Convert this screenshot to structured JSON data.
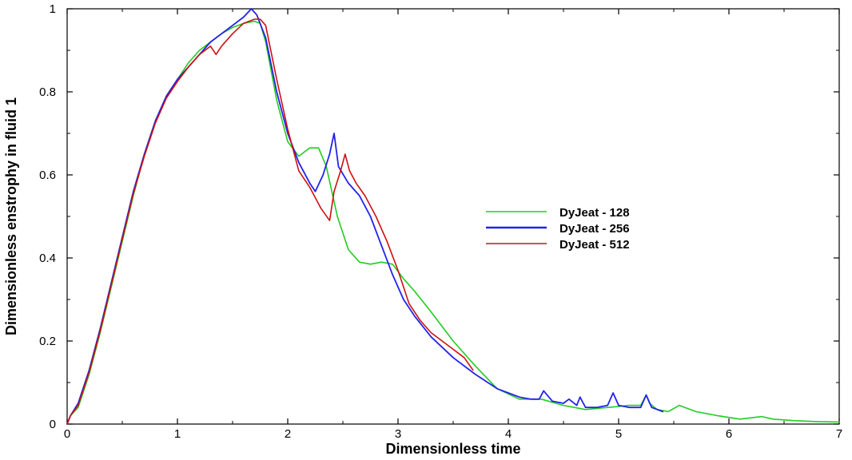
{
  "chart_data": {
    "type": "line",
    "title": "",
    "xlabel": "Dimensionless time",
    "ylabel": "Dimensionless enstrophy in fluid 1",
    "xlim": [
      0,
      7
    ],
    "ylim": [
      0,
      1
    ],
    "grid": false,
    "legend_position": "center-right",
    "x_ticks": [
      0,
      1,
      2,
      3,
      4,
      5,
      6,
      7
    ],
    "x_tick_labels": [
      "0",
      "1",
      "2",
      "3",
      "4",
      "5",
      "6",
      "7"
    ],
    "y_ticks": [
      0,
      0.2,
      0.4,
      0.6,
      0.8,
      1
    ],
    "y_tick_labels": [
      "0",
      "0.2",
      "0.4",
      "0.6",
      "0.8",
      "1"
    ],
    "series": [
      {
        "name": "DyJeat - 128",
        "color": "#22cc22",
        "x": [
          0,
          0.03,
          0.1,
          0.2,
          0.3,
          0.4,
          0.5,
          0.6,
          0.7,
          0.8,
          0.9,
          1.0,
          1.1,
          1.2,
          1.3,
          1.4,
          1.5,
          1.6,
          1.7,
          1.75,
          1.8,
          1.9,
          2.0,
          2.1,
          2.15,
          2.2,
          2.28,
          2.35,
          2.45,
          2.55,
          2.65,
          2.75,
          2.85,
          2.95,
          3.05,
          3.15,
          3.3,
          3.5,
          3.7,
          3.9,
          4.1,
          4.3,
          4.5,
          4.7,
          4.9,
          5.1,
          5.2,
          5.25,
          5.28,
          5.35,
          5.45,
          5.55,
          5.7,
          5.9,
          6.1,
          6.3,
          6.4,
          6.6,
          6.8,
          7.0
        ],
        "y": [
          0,
          0.02,
          0.04,
          0.12,
          0.22,
          0.33,
          0.44,
          0.55,
          0.65,
          0.73,
          0.79,
          0.83,
          0.87,
          0.9,
          0.92,
          0.94,
          0.955,
          0.965,
          0.97,
          0.965,
          0.92,
          0.78,
          0.68,
          0.645,
          0.655,
          0.665,
          0.665,
          0.62,
          0.5,
          0.42,
          0.39,
          0.385,
          0.39,
          0.385,
          0.35,
          0.32,
          0.27,
          0.2,
          0.14,
          0.085,
          0.06,
          0.06,
          0.045,
          0.035,
          0.04,
          0.045,
          0.045,
          0.07,
          0.05,
          0.035,
          0.03,
          0.045,
          0.03,
          0.02,
          0.012,
          0.018,
          0.012,
          0.008,
          0.006,
          0.005
        ]
      },
      {
        "name": "DyJeat - 256",
        "color": "#2222ee",
        "x": [
          0,
          0.03,
          0.1,
          0.2,
          0.3,
          0.4,
          0.5,
          0.6,
          0.7,
          0.8,
          0.9,
          1.0,
          1.1,
          1.2,
          1.3,
          1.4,
          1.5,
          1.6,
          1.67,
          1.72,
          1.8,
          1.9,
          2.0,
          2.1,
          2.2,
          2.25,
          2.32,
          2.38,
          2.42,
          2.46,
          2.55,
          2.65,
          2.75,
          2.85,
          2.95,
          3.05,
          3.15,
          3.3,
          3.5,
          3.7,
          3.9,
          4.0,
          4.1,
          4.2,
          4.28,
          4.32,
          4.4,
          4.5,
          4.55,
          4.62,
          4.65,
          4.7,
          4.8,
          4.9,
          4.95,
          5.0,
          5.1,
          5.2,
          5.25,
          5.3,
          5.4
        ],
        "y": [
          0,
          0.02,
          0.05,
          0.13,
          0.23,
          0.34,
          0.45,
          0.56,
          0.65,
          0.73,
          0.79,
          0.83,
          0.86,
          0.89,
          0.92,
          0.94,
          0.96,
          0.98,
          1.0,
          0.985,
          0.93,
          0.8,
          0.7,
          0.63,
          0.58,
          0.56,
          0.6,
          0.65,
          0.7,
          0.62,
          0.58,
          0.55,
          0.5,
          0.43,
          0.36,
          0.3,
          0.26,
          0.21,
          0.16,
          0.12,
          0.085,
          0.075,
          0.065,
          0.06,
          0.06,
          0.08,
          0.055,
          0.05,
          0.06,
          0.045,
          0.065,
          0.04,
          0.04,
          0.045,
          0.075,
          0.045,
          0.04,
          0.04,
          0.07,
          0.04,
          0.03
        ]
      },
      {
        "name": "DyJeat - 512",
        "color": "#cc1111",
        "x": [
          0,
          0.03,
          0.1,
          0.2,
          0.3,
          0.4,
          0.5,
          0.6,
          0.7,
          0.8,
          0.9,
          1.0,
          1.1,
          1.2,
          1.3,
          1.35,
          1.4,
          1.5,
          1.6,
          1.7,
          1.75,
          1.8,
          1.9,
          2.0,
          2.1,
          2.2,
          2.3,
          2.38,
          2.42,
          2.48,
          2.52,
          2.56,
          2.62,
          2.7,
          2.8,
          2.9,
          3.0,
          3.1,
          3.2,
          3.3,
          3.4,
          3.5,
          3.6,
          3.68
        ],
        "y": [
          0,
          0.02,
          0.045,
          0.125,
          0.225,
          0.335,
          0.445,
          0.555,
          0.645,
          0.725,
          0.785,
          0.825,
          0.86,
          0.89,
          0.91,
          0.89,
          0.91,
          0.94,
          0.965,
          0.975,
          0.975,
          0.96,
          0.83,
          0.71,
          0.61,
          0.57,
          0.52,
          0.49,
          0.56,
          0.61,
          0.65,
          0.61,
          0.58,
          0.55,
          0.5,
          0.44,
          0.37,
          0.29,
          0.25,
          0.22,
          0.2,
          0.18,
          0.16,
          0.13
        ]
      }
    ]
  }
}
